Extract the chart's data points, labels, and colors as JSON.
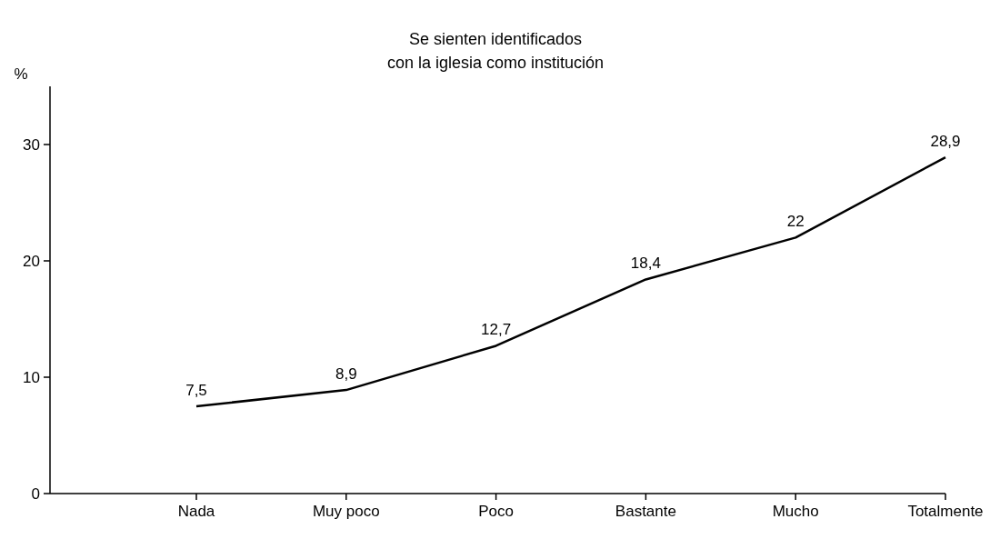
{
  "chart_data": {
    "type": "line",
    "title": "Se sienten identificados\ncon la iglesia como institución",
    "ylabel": "%",
    "categories": [
      "Nada",
      "Muy poco",
      "Poco",
      "Bastante",
      "Mucho",
      "Totalmente"
    ],
    "series": [
      {
        "color": "#000000",
        "values": [
          7.5,
          8.9,
          12.7,
          18.4,
          22,
          28.9
        ],
        "value_labels": [
          "7,5",
          "8,9",
          "12,7",
          "18,4",
          "22",
          "28,9"
        ]
      }
    ],
    "ylim": [
      0,
      35
    ],
    "yticks": [
      0,
      10,
      20,
      30
    ],
    "grid": false,
    "marker": "none",
    "line_style": "solid"
  }
}
